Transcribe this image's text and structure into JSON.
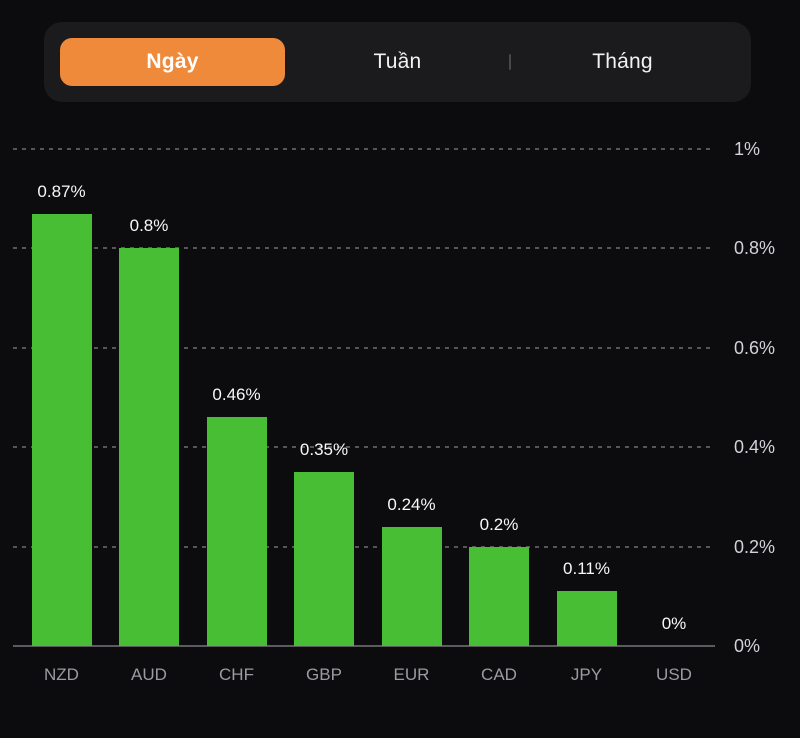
{
  "tabs": {
    "items": [
      {
        "label": "Ngày",
        "active": true
      },
      {
        "label": "Tuần",
        "active": false
      },
      {
        "label": "Tháng",
        "active": false
      }
    ]
  },
  "colors": {
    "background": "#0c0c0e",
    "tab_bar_bg": "#1b1b1d",
    "active_tab_bg": "#f08a3b",
    "bar_green": "#47be33",
    "gridline": "#55555a",
    "baseline": "#5a5b5f",
    "value_label": "#f7f7f8",
    "axis_label": "#d2d2d7",
    "category_label": "#9b9ba2"
  },
  "chart_data": {
    "type": "bar",
    "title": "",
    "xlabel": "",
    "ylabel": "",
    "categories": [
      "NZD",
      "AUD",
      "CHF",
      "GBP",
      "EUR",
      "CAD",
      "JPY",
      "USD"
    ],
    "values": [
      0.87,
      0.8,
      0.46,
      0.35,
      0.24,
      0.2,
      0.11,
      0
    ],
    "value_labels": [
      "0.87%",
      "0.8%",
      "0.46%",
      "0.35%",
      "0.24%",
      "0.2%",
      "0.11%",
      "0%"
    ],
    "ylim": [
      0,
      1
    ],
    "yticks": [
      1,
      0.8,
      0.6,
      0.4,
      0.2,
      0
    ],
    "ytick_labels": [
      "1%",
      "0.8%",
      "0.6%",
      "0.4%",
      "0.2%",
      "0%"
    ],
    "axis_position": "right",
    "grid": "horizontal-dashed, solid zero baseline",
    "legend": null,
    "bar_color": "#47be33"
  }
}
